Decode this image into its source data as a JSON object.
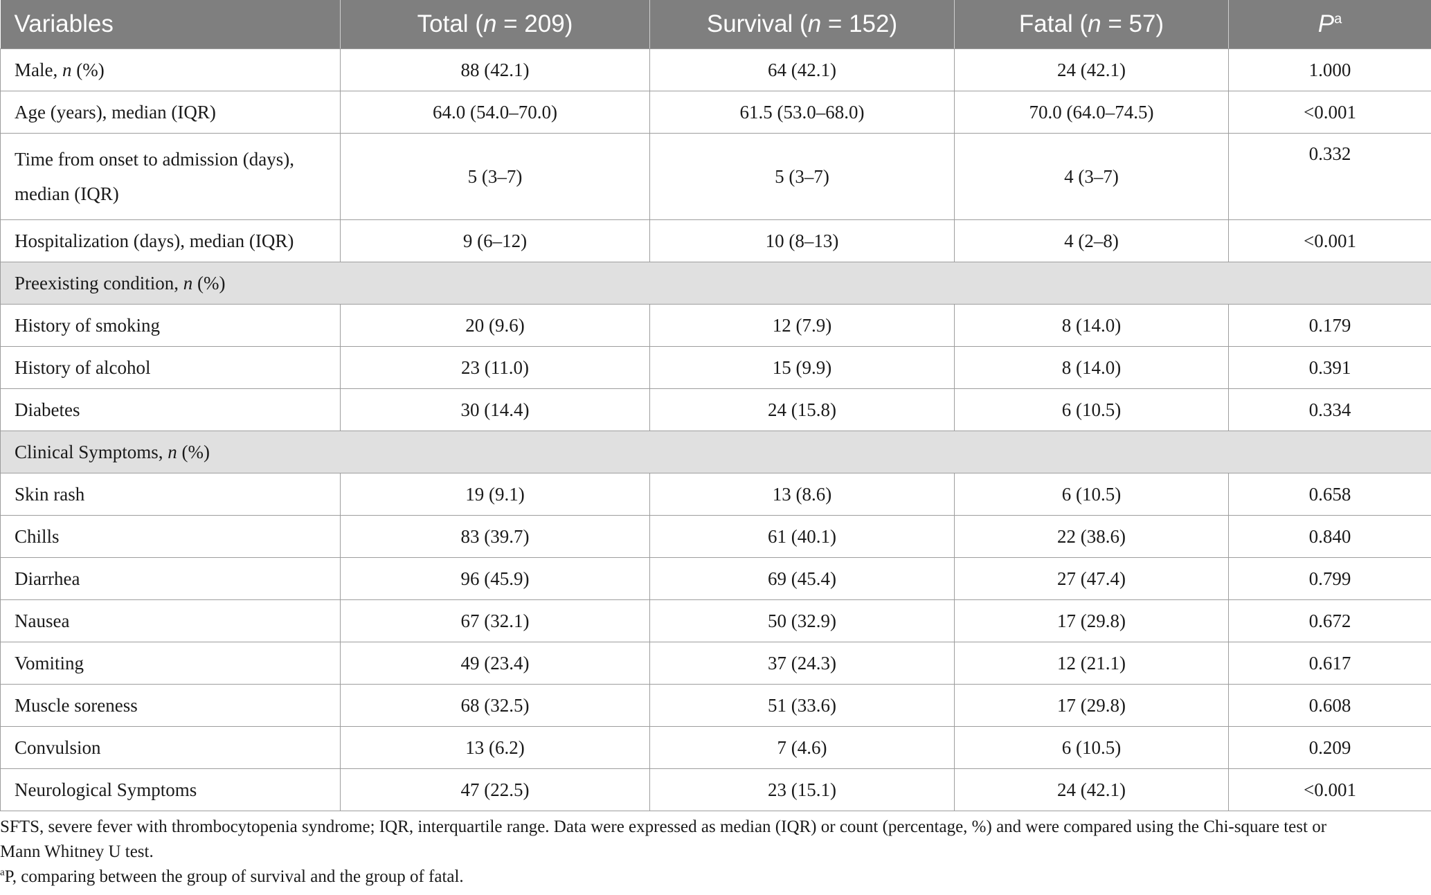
{
  "header": {
    "variables": "Variables",
    "total_label": "Total (",
    "total_n": "n",
    "total_rest": " = 209)",
    "survival_label": "Survival (",
    "survival_n": "n",
    "survival_rest": " = 152)",
    "fatal_label": "Fatal (",
    "fatal_n": "n",
    "fatal_rest": " = 57)",
    "p_label": "P",
    "p_sup": "a"
  },
  "rows": [
    {
      "label": "Male, ",
      "label_italic": "n",
      "label_suffix": " (%)",
      "total": "88 (42.1)",
      "survival": "64 (42.1)",
      "fatal": "24 (42.1)",
      "p": "1.000"
    },
    {
      "label": "Age (years), median (IQR)",
      "total": "64.0 (54.0–70.0)",
      "survival": "61.5 (53.0–68.0)",
      "fatal": "70.0 (64.0–74.5)",
      "p": "<0.001"
    },
    {
      "label_line1": "Time from onset to admission (days),",
      "label_line2": "median (IQR)",
      "total": "5 (3–7)",
      "survival": "5 (3–7)",
      "fatal": "4 (3–7)",
      "p": "0.332"
    },
    {
      "label": "Hospitalization (days), median (IQR)",
      "total": "9 (6–12)",
      "survival": "10 (8–13)",
      "fatal": "4 (2–8)",
      "p": "<0.001"
    }
  ],
  "section_preexisting": {
    "label": "Preexisting condition, ",
    "label_italic": "n",
    "label_suffix": " (%)"
  },
  "preexisting_rows": [
    {
      "label": "History of smoking",
      "total": "20 (9.6)",
      "survival": "12 (7.9)",
      "fatal": "8 (14.0)",
      "p": "0.179"
    },
    {
      "label": "History of alcohol",
      "total": "23 (11.0)",
      "survival": "15 (9.9)",
      "fatal": "8 (14.0)",
      "p": "0.391"
    },
    {
      "label": "Diabetes",
      "total": "30 (14.4)",
      "survival": "24 (15.8)",
      "fatal": "6 (10.5)",
      "p": "0.334"
    }
  ],
  "section_symptoms": {
    "label": "Clinical Symptoms, ",
    "label_italic": "n",
    "label_suffix": " (%)"
  },
  "symptom_rows": [
    {
      "label": "Skin rash",
      "total": "19 (9.1)",
      "survival": "13 (8.6)",
      "fatal": "6 (10.5)",
      "p": "0.658"
    },
    {
      "label": "Chills",
      "total": "83 (39.7)",
      "survival": "61 (40.1)",
      "fatal": "22 (38.6)",
      "p": "0.840"
    },
    {
      "label": "Diarrhea",
      "total": "96 (45.9)",
      "survival": "69 (45.4)",
      "fatal": "27 (47.4)",
      "p": "0.799"
    },
    {
      "label": "Nausea",
      "total": "67 (32.1)",
      "survival": "50 (32.9)",
      "fatal": "17 (29.8)",
      "p": "0.672"
    },
    {
      "label": "Vomiting",
      "total": "49 (23.4)",
      "survival": "37 (24.3)",
      "fatal": "12 (21.1)",
      "p": "0.617"
    },
    {
      "label": "Muscle soreness",
      "total": "68 (32.5)",
      "survival": "51 (33.6)",
      "fatal": "17 (29.8)",
      "p": "0.608"
    },
    {
      "label": "Convulsion",
      "total": "13 (6.2)",
      "survival": "7 (4.6)",
      "fatal": "6 (10.5)",
      "p": "0.209"
    },
    {
      "label": "Neurological Symptoms",
      "total": "47 (22.5)",
      "survival": "23 (15.1)",
      "fatal": "24 (42.1)",
      "p": "<0.001"
    }
  ],
  "footnotes": {
    "line1": "SFTS, severe fever with thrombocytopenia syndrome; IQR, interquartile range. Data were expressed as median (IQR) or count (percentage, %) and were compared using the Chi-square test or",
    "line2": "Mann Whitney U test.",
    "note_a_sup": "a",
    "note_a_text": "P, comparing between the group of survival and the group of fatal."
  }
}
